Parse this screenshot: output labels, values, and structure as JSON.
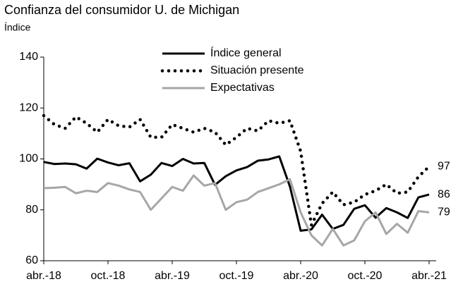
{
  "chart_data": {
    "type": "line",
    "title": "Confianza del consumidor U. de Michigan",
    "subtitle": "Índice",
    "categories": [
      "abr.-18",
      null,
      null,
      null,
      null,
      null,
      "oct.-18",
      null,
      null,
      null,
      null,
      null,
      "abr.-19",
      null,
      null,
      null,
      null,
      null,
      "oct.-19",
      null,
      null,
      null,
      null,
      null,
      "abr.-20",
      null,
      null,
      null,
      null,
      null,
      "oct.-20",
      null,
      null,
      null,
      null,
      null,
      "abr.-21"
    ],
    "series": [
      {
        "name": "Índice general",
        "color": "#000000",
        "style": "solid",
        "values": [
          98.8,
          98,
          98.2,
          97.9,
          96.2,
          100.1,
          98.6,
          97.5,
          98.3,
          91.2,
          93.8,
          98.4,
          97.2,
          100,
          98.2,
          98.4,
          89.8,
          93.2,
          95.5,
          96.8,
          99.3,
          99.8,
          101,
          89.1,
          71.8,
          72.3,
          78.1,
          72.5,
          74.1,
          80.4,
          81.8,
          76.9,
          80.7,
          79,
          76.8,
          84.9,
          86
        ]
      },
      {
        "name": "Situación presente",
        "color": "#000000",
        "style": "dotted",
        "values": [
          117,
          113.5,
          112,
          116.5,
          114,
          110.5,
          115.5,
          113,
          112.5,
          115.5,
          108.5,
          108.5,
          113.5,
          112,
          110.5,
          112,
          110.5,
          105.5,
          108.5,
          112,
          111,
          115,
          114,
          115,
          103,
          74,
          82.5,
          87,
          82,
          83,
          86,
          87.5,
          90,
          86.5,
          87,
          93,
          97
        ]
      },
      {
        "name": "Expectativas",
        "color": "#a6a6a6",
        "style": "solid",
        "values": [
          88.5,
          88.7,
          89,
          86.5,
          87.5,
          87,
          90.5,
          89.5,
          88,
          87,
          80,
          84.5,
          89,
          87.5,
          93.5,
          89.5,
          90.5,
          80,
          83,
          84,
          87,
          88.5,
          90,
          92,
          79,
          70,
          66,
          72.5,
          66,
          68,
          75.5,
          79,
          70.5,
          74.5,
          71,
          79.5,
          79
        ]
      }
    ],
    "ylim": [
      60,
      140
    ],
    "yticks": [
      60,
      80,
      100,
      120,
      140
    ],
    "grid": false,
    "legend": "top"
  }
}
